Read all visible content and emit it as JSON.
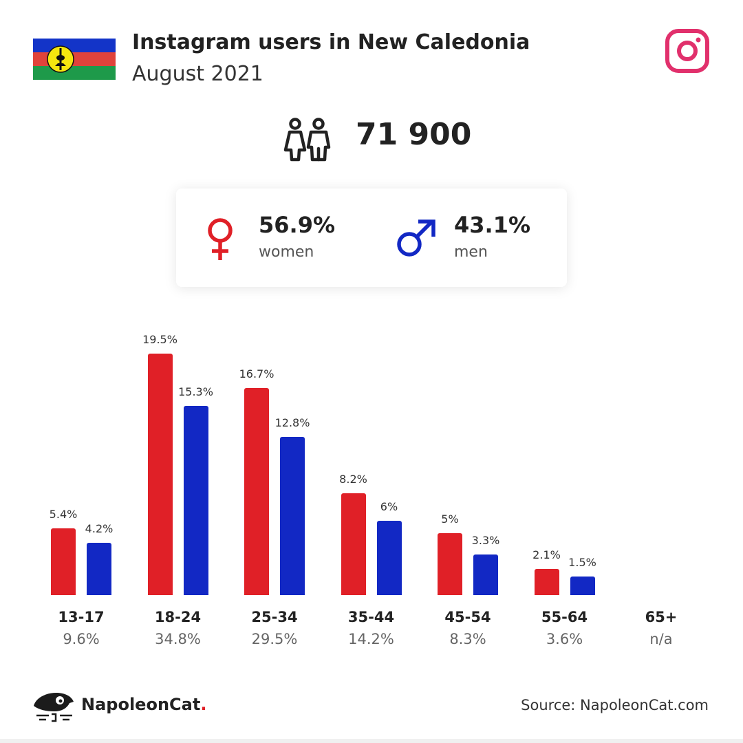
{
  "header": {
    "title": "Instagram users in New Caledonia",
    "subtitle": "August 2021"
  },
  "summary": {
    "total_users": "71 900",
    "women_pct": "56.9%",
    "women_label": "women",
    "men_pct": "43.1%",
    "men_label": "men"
  },
  "colors": {
    "women": "#e02027",
    "men": "#1228c4",
    "instagram": "#e1306c"
  },
  "icons": {
    "flag": "new-caledonia-flag-icon",
    "instagram": "instagram-icon",
    "users": "users-icon",
    "female": "female-symbol-icon",
    "male": "male-symbol-icon",
    "logo": "napoleoncat-logo-icon"
  },
  "chart_data": {
    "type": "bar",
    "categories": [
      "13-17",
      "18-24",
      "25-34",
      "35-44",
      "45-54",
      "55-64",
      "65+"
    ],
    "category_totals": [
      "9.6%",
      "34.8%",
      "29.5%",
      "14.2%",
      "8.3%",
      "3.6%",
      "n/a"
    ],
    "series": [
      {
        "key": "women",
        "values": [
          5.4,
          19.5,
          16.7,
          8.2,
          5,
          2.1,
          null
        ],
        "labels": [
          "5.4%",
          "19.5%",
          "16.7%",
          "8.2%",
          "5%",
          "2.1%",
          ""
        ]
      },
      {
        "key": "men",
        "values": [
          4.2,
          15.3,
          12.8,
          6,
          3.3,
          1.5,
          null
        ],
        "labels": [
          "4.2%",
          "15.3%",
          "12.8%",
          "6%",
          "3.3%",
          "1.5%",
          ""
        ]
      }
    ],
    "title": "",
    "xlabel": "",
    "ylabel": "",
    "ylim": [
      0,
      20
    ],
    "grid": false
  },
  "footer": {
    "brand_name": "NapoleonCat",
    "brand_dot": ".",
    "source": "Source: NapoleonCat.com"
  }
}
